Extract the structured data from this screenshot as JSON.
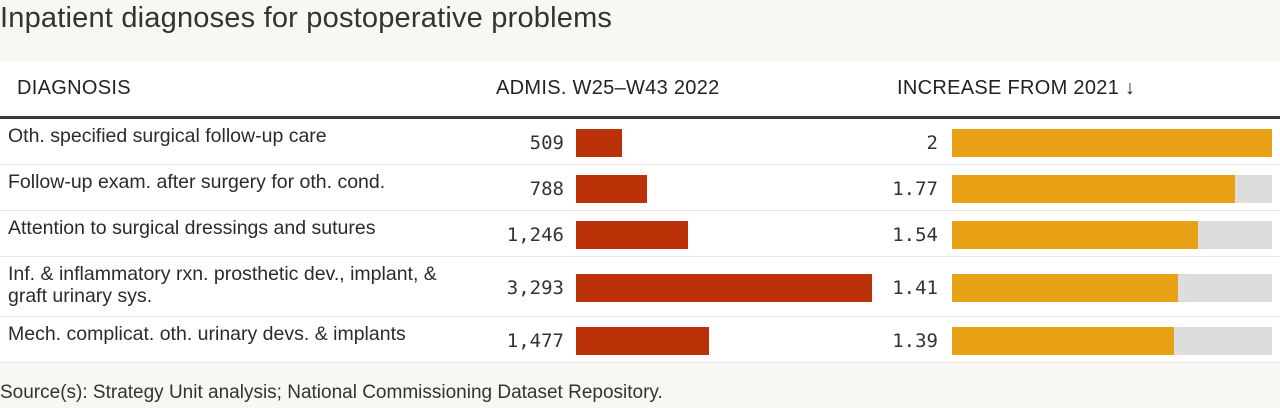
{
  "title": "Inpatient diagnoses for postoperative problems",
  "columns": {
    "diagnosis": "DIAGNOSIS",
    "admissions": "ADMIS. W25–W43 2022",
    "increase": "INCREASE FROM 2021 ↓"
  },
  "rows": [
    {
      "diagnosis": "Oth. specified surgical follow-up care",
      "admissions_label": "509",
      "increase_label": "2"
    },
    {
      "diagnosis": "Follow-up exam. after surgery for oth. cond.",
      "admissions_label": "788",
      "increase_label": "1.77"
    },
    {
      "diagnosis": "Attention to surgical dressings and sutures",
      "admissions_label": "1,246",
      "increase_label": "1.54"
    },
    {
      "diagnosis": "Inf. & inflammatory rxn. prosthetic dev., implant, & graft urinary sys.",
      "admissions_label": "3,293",
      "increase_label": "1.41"
    },
    {
      "diagnosis": "Mech. complicat. oth. urinary devs. & implants",
      "admissions_label": "1,477",
      "increase_label": "1.39"
    }
  ],
  "source": "Source(s): Strategy Unit analysis; National Commissioning Dataset Repository.",
  "colors": {
    "admissions_bar": "#bb3208",
    "increase_bar": "#e9a115",
    "increase_track": "#dddddd"
  },
  "chart_data": {
    "type": "table",
    "title": "Inpatient diagnoses for postoperative problems",
    "categories": [
      "Oth. specified surgical follow-up care",
      "Follow-up exam. after surgery for oth. cond.",
      "Attention to surgical dressings and sutures",
      "Inf. & inflammatory rxn. prosthetic dev., implant, & graft urinary sys.",
      "Mech. complicat. oth. urinary devs. & implants"
    ],
    "series": [
      {
        "name": "ADMIS. W25–W43 2022",
        "values": [
          509,
          788,
          1246,
          3293,
          1477
        ]
      },
      {
        "name": "INCREASE FROM 2021",
        "values": [
          2,
          1.77,
          1.54,
          1.41,
          1.39
        ]
      }
    ],
    "admissions_max": 3293,
    "increase_max": 2,
    "sort": "increase descending"
  }
}
